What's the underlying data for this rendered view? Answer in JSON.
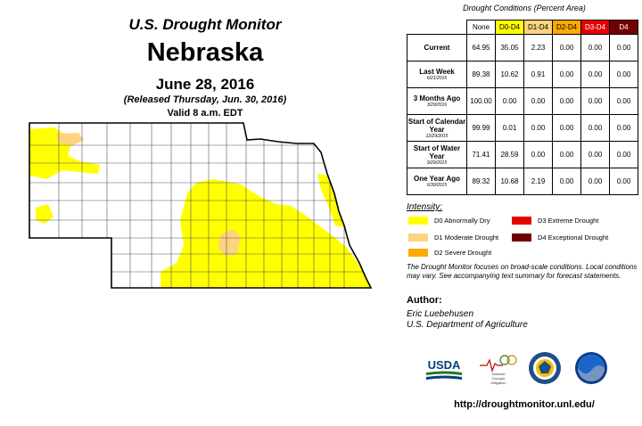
{
  "header": {
    "line1": "U.S. Drought Monitor",
    "line2": "Nebraska",
    "line3": "June 28, 2016",
    "line4": "(Released Thursday, Jun. 30, 2016)",
    "line5": "Valid 8 a.m. EDT"
  },
  "table": {
    "caption": "Drought Conditions (Percent Area)",
    "columns": [
      "None",
      "D0-D4",
      "D1-D4",
      "D2-D4",
      "D3-D4",
      "D4"
    ],
    "rows": [
      {
        "label": "Current",
        "sub": "",
        "values": [
          "64.95",
          "35.05",
          "2.23",
          "0.00",
          "0.00",
          "0.00"
        ]
      },
      {
        "label": "Last Week",
        "sub": "6/21/2016",
        "values": [
          "89.38",
          "10.62",
          "0.91",
          "0.00",
          "0.00",
          "0.00"
        ]
      },
      {
        "label": "3 Months Ago",
        "sub": "3/29/2016",
        "values": [
          "100.00",
          "0.00",
          "0.00",
          "0.00",
          "0.00",
          "0.00"
        ]
      },
      {
        "label": "Start of Calendar Year",
        "sub": "12/29/2015",
        "values": [
          "99.99",
          "0.01",
          "0.00",
          "0.00",
          "0.00",
          "0.00"
        ]
      },
      {
        "label": "Start of Water Year",
        "sub": "9/29/2015",
        "values": [
          "71.41",
          "28.59",
          "0.00",
          "0.00",
          "0.00",
          "0.00"
        ]
      },
      {
        "label": "One Year Ago",
        "sub": "6/30/2015",
        "values": [
          "89.32",
          "10.68",
          "2.19",
          "0.00",
          "0.00",
          "0.00"
        ]
      }
    ]
  },
  "legend": {
    "title": "Intensity:",
    "items": [
      {
        "label": "D0 Abnormally Dry",
        "color": "#ffff00"
      },
      {
        "label": "D1 Moderate Drought",
        "color": "#fcd37f"
      },
      {
        "label": "D2 Severe Drought",
        "color": "#ffaa00"
      },
      {
        "label": "D3 Extreme Drought",
        "color": "#e60000"
      },
      {
        "label": "D4 Exceptional Drought",
        "color": "#730000"
      }
    ]
  },
  "note": "The Drought Monitor focuses on broad-scale conditions. Local conditions may vary. See accompanying text summary for forecast statements.",
  "author": {
    "heading": "Author:",
    "name": "Eric Luebehusen",
    "org": "U.S. Department of Agriculture"
  },
  "logos": {
    "usda": "USDA",
    "ndmc": "National Drought Mitigation Center"
  },
  "url": "http://droughtmonitor.unl.edu/",
  "map": {
    "state": "Nebraska",
    "outline_color": "#000000",
    "county_line_color": "#555555",
    "d0_color": "#ffff00",
    "d1_color": "#fcd37f"
  }
}
